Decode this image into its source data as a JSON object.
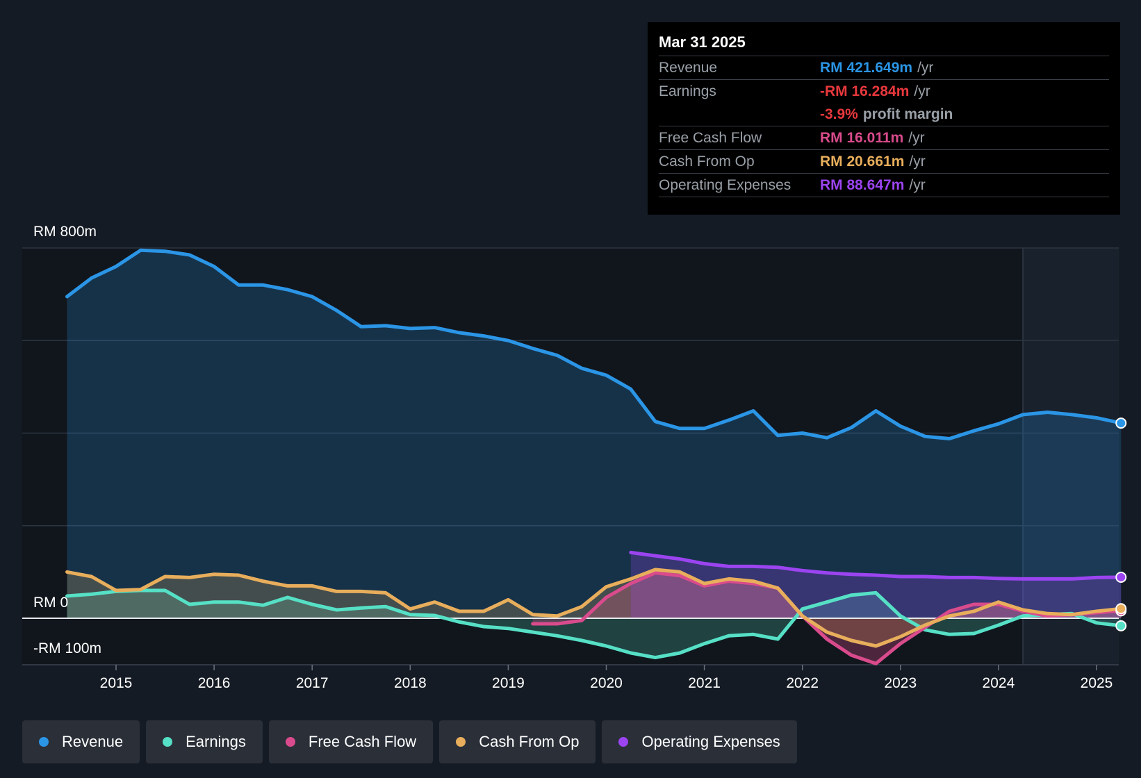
{
  "chart_data": {
    "type": "area",
    "currency_labels": {
      "top": "RM 800m",
      "zero": "RM 0",
      "bottom": "-RM 100m"
    },
    "ylim": [
      -100,
      800
    ],
    "x_ticks": [
      "2015",
      "2016",
      "2017",
      "2018",
      "2019",
      "2020",
      "2021",
      "2022",
      "2023",
      "2024",
      "2025"
    ],
    "xlim": [
      2014.0,
      2025.25
    ],
    "forecast_start": 2024.25,
    "series": [
      {
        "name": "Revenue",
        "color": "#2b95e6",
        "points": [
          [
            2014.5,
            695
          ],
          [
            2014.75,
            735
          ],
          [
            2015.0,
            760
          ],
          [
            2015.25,
            795
          ],
          [
            2015.5,
            793
          ],
          [
            2015.75,
            785
          ],
          [
            2016.0,
            760
          ],
          [
            2016.25,
            720
          ],
          [
            2016.5,
            720
          ],
          [
            2016.75,
            710
          ],
          [
            2017.0,
            695
          ],
          [
            2017.25,
            665
          ],
          [
            2017.5,
            630
          ],
          [
            2017.75,
            632
          ],
          [
            2018.0,
            626
          ],
          [
            2018.25,
            628
          ],
          [
            2018.5,
            617
          ],
          [
            2018.75,
            610
          ],
          [
            2019.0,
            600
          ],
          [
            2019.25,
            583
          ],
          [
            2019.5,
            568
          ],
          [
            2019.75,
            540
          ],
          [
            2020.0,
            525
          ],
          [
            2020.25,
            495
          ],
          [
            2020.5,
            425
          ],
          [
            2020.75,
            410
          ],
          [
            2021.0,
            410
          ],
          [
            2021.25,
            428
          ],
          [
            2021.5,
            448
          ],
          [
            2021.75,
            395
          ],
          [
            2022.0,
            400
          ],
          [
            2022.25,
            390
          ],
          [
            2022.5,
            412
          ],
          [
            2022.75,
            448
          ],
          [
            2023.0,
            415
          ],
          [
            2023.25,
            393
          ],
          [
            2023.5,
            388
          ],
          [
            2023.75,
            405
          ],
          [
            2024.0,
            420
          ],
          [
            2024.25,
            440
          ],
          [
            2024.5,
            445
          ],
          [
            2024.75,
            440
          ],
          [
            2025.0,
            433
          ],
          [
            2025.25,
            421.649
          ]
        ]
      },
      {
        "name": "Earnings",
        "color": "#56e0c6",
        "points": [
          [
            2014.5,
            48
          ],
          [
            2014.75,
            52
          ],
          [
            2015.0,
            58
          ],
          [
            2015.25,
            60
          ],
          [
            2015.5,
            60
          ],
          [
            2015.75,
            30
          ],
          [
            2016.0,
            35
          ],
          [
            2016.25,
            35
          ],
          [
            2016.5,
            28
          ],
          [
            2016.75,
            45
          ],
          [
            2017.0,
            30
          ],
          [
            2017.25,
            18
          ],
          [
            2017.5,
            22
          ],
          [
            2017.75,
            25
          ],
          [
            2018.0,
            8
          ],
          [
            2018.25,
            6
          ],
          [
            2018.5,
            -8
          ],
          [
            2018.75,
            -18
          ],
          [
            2019.0,
            -22
          ],
          [
            2019.25,
            -30
          ],
          [
            2019.5,
            -38
          ],
          [
            2019.75,
            -48
          ],
          [
            2020.0,
            -60
          ],
          [
            2020.25,
            -75
          ],
          [
            2020.5,
            -85
          ],
          [
            2020.75,
            -75
          ],
          [
            2021.0,
            -55
          ],
          [
            2021.25,
            -38
          ],
          [
            2021.5,
            -35
          ],
          [
            2021.75,
            -45
          ],
          [
            2022.0,
            20
          ],
          [
            2022.25,
            35
          ],
          [
            2022.5,
            50
          ],
          [
            2022.75,
            55
          ],
          [
            2023.0,
            5
          ],
          [
            2023.25,
            -25
          ],
          [
            2023.5,
            -35
          ],
          [
            2023.75,
            -33
          ],
          [
            2024.0,
            -15
          ],
          [
            2024.25,
            5
          ],
          [
            2024.5,
            8
          ],
          [
            2024.75,
            10
          ],
          [
            2025.0,
            -10
          ],
          [
            2025.25,
            -16.284
          ]
        ]
      },
      {
        "name": "Free Cash Flow",
        "color": "#d94b8c",
        "points": [
          [
            2019.25,
            -12
          ],
          [
            2019.5,
            -12
          ],
          [
            2019.75,
            -5
          ],
          [
            2020.0,
            45
          ],
          [
            2020.25,
            75
          ],
          [
            2020.5,
            98
          ],
          [
            2020.75,
            92
          ],
          [
            2021.0,
            70
          ],
          [
            2021.25,
            80
          ],
          [
            2021.5,
            75
          ],
          [
            2021.75,
            65
          ],
          [
            2022.0,
            5
          ],
          [
            2022.25,
            -45
          ],
          [
            2022.5,
            -80
          ],
          [
            2022.75,
            -98
          ],
          [
            2023.0,
            -55
          ],
          [
            2023.25,
            -20
          ],
          [
            2023.5,
            15
          ],
          [
            2023.75,
            30
          ],
          [
            2024.0,
            30
          ],
          [
            2024.25,
            15
          ],
          [
            2024.5,
            5
          ],
          [
            2024.75,
            8
          ],
          [
            2025.0,
            12
          ],
          [
            2025.25,
            16.011
          ]
        ]
      },
      {
        "name": "Cash From Op",
        "color": "#e8ae5c",
        "points": [
          [
            2014.5,
            100
          ],
          [
            2014.75,
            90
          ],
          [
            2015.0,
            60
          ],
          [
            2015.25,
            62
          ],
          [
            2015.5,
            90
          ],
          [
            2015.75,
            88
          ],
          [
            2016.0,
            95
          ],
          [
            2016.25,
            93
          ],
          [
            2016.5,
            80
          ],
          [
            2016.75,
            70
          ],
          [
            2017.0,
            70
          ],
          [
            2017.25,
            58
          ],
          [
            2017.5,
            58
          ],
          [
            2017.75,
            55
          ],
          [
            2018.0,
            20
          ],
          [
            2018.25,
            35
          ],
          [
            2018.5,
            15
          ],
          [
            2018.75,
            15
          ],
          [
            2019.0,
            40
          ],
          [
            2019.25,
            8
          ],
          [
            2019.5,
            5
          ],
          [
            2019.75,
            25
          ],
          [
            2020.0,
            68
          ],
          [
            2020.25,
            85
          ],
          [
            2020.5,
            105
          ],
          [
            2020.75,
            100
          ],
          [
            2021.0,
            75
          ],
          [
            2021.25,
            85
          ],
          [
            2021.5,
            80
          ],
          [
            2021.75,
            65
          ],
          [
            2022.0,
            5
          ],
          [
            2022.25,
            -30
          ],
          [
            2022.5,
            -48
          ],
          [
            2022.75,
            -60
          ],
          [
            2023.0,
            -40
          ],
          [
            2023.25,
            -15
          ],
          [
            2023.5,
            5
          ],
          [
            2023.75,
            15
          ],
          [
            2024.0,
            35
          ],
          [
            2024.25,
            18
          ],
          [
            2024.5,
            10
          ],
          [
            2024.75,
            8
          ],
          [
            2025.0,
            15
          ],
          [
            2025.25,
            20.661
          ]
        ]
      },
      {
        "name": "Operating Expenses",
        "color": "#9b44f0",
        "points": [
          [
            2020.25,
            142
          ],
          [
            2020.5,
            135
          ],
          [
            2020.75,
            128
          ],
          [
            2021.0,
            118
          ],
          [
            2021.25,
            112
          ],
          [
            2021.5,
            112
          ],
          [
            2021.75,
            110
          ],
          [
            2022.0,
            103
          ],
          [
            2022.25,
            98
          ],
          [
            2022.5,
            95
          ],
          [
            2022.75,
            93
          ],
          [
            2023.0,
            90
          ],
          [
            2023.25,
            90
          ],
          [
            2023.5,
            88
          ],
          [
            2023.75,
            88
          ],
          [
            2024.0,
            86
          ],
          [
            2024.25,
            85
          ],
          [
            2024.5,
            85
          ],
          [
            2024.75,
            85
          ],
          [
            2025.0,
            88
          ],
          [
            2025.25,
            88.647
          ]
        ]
      }
    ]
  },
  "tooltip": {
    "date": "Mar 31 2025",
    "rows": [
      {
        "label": "Revenue",
        "value": "RM 421.649m",
        "unit": "/yr",
        "color": "#2b95e6"
      },
      {
        "label": "Earnings",
        "value": "-RM 16.284m",
        "unit": "/yr",
        "color": "#e8383d"
      },
      {
        "label": "",
        "value": "-3.9%",
        "unit": "profit margin",
        "color": "#e8383d"
      },
      {
        "label": "Free Cash Flow",
        "value": "RM 16.011m",
        "unit": "/yr",
        "color": "#d94b8c"
      },
      {
        "label": "Cash From Op",
        "value": "RM 20.661m",
        "unit": "/yr",
        "color": "#e8ae5c"
      },
      {
        "label": "Operating Expenses",
        "value": "RM 88.647m",
        "unit": "/yr",
        "color": "#9b44f0"
      }
    ]
  },
  "legend": [
    {
      "label": "Revenue",
      "color": "#2b95e6"
    },
    {
      "label": "Earnings",
      "color": "#56e0c6"
    },
    {
      "label": "Free Cash Flow",
      "color": "#d94b8c"
    },
    {
      "label": "Cash From Op",
      "color": "#e8ae5c"
    },
    {
      "label": "Operating Expenses",
      "color": "#9b44f0"
    }
  ]
}
